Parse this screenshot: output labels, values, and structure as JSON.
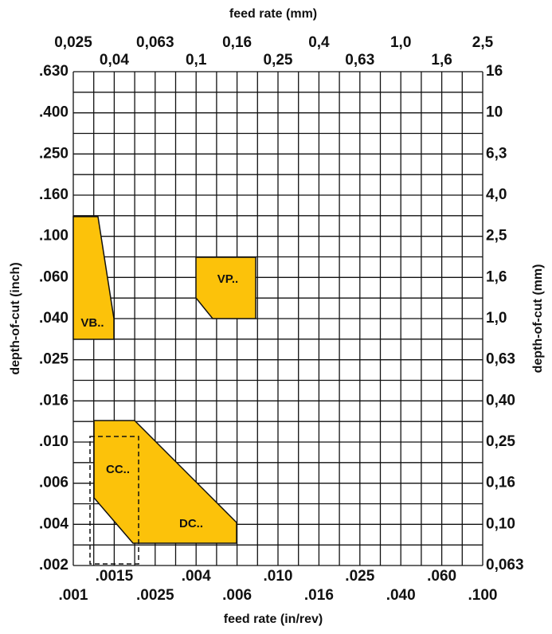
{
  "top_axis": {
    "title": "feed rate (mm)",
    "labels": [
      "0,025",
      "0,04",
      "0,063",
      "0,1",
      "0,16",
      "0,25",
      "0,4",
      "0,63",
      "1,0",
      "1,6",
      "2,5"
    ]
  },
  "bottom_axis": {
    "title": "feed rate (in/rev)",
    "labels": [
      ".001",
      ".0015",
      ".0025",
      ".004",
      ".006",
      ".010",
      ".016",
      ".025",
      ".040",
      ".060",
      ".100"
    ]
  },
  "left_axis": {
    "title": "depth-of-cut (inch)",
    "labels": [
      ".630",
      ".400",
      ".250",
      ".160",
      ".100",
      ".060",
      ".040",
      ".025",
      ".016",
      ".010",
      ".006",
      ".004",
      ".002"
    ]
  },
  "right_axis": {
    "title": "depth-of-cut (mm)",
    "labels": [
      "16",
      "10",
      "6,3",
      "4,0",
      "2,5",
      "1,6",
      "1,0",
      "0,63",
      "0,40",
      "0,25",
      "0,16",
      "0,10",
      "0,063"
    ]
  },
  "regions": [
    {
      "label": "VB.."
    },
    {
      "label": "VP.."
    },
    {
      "label": "DC.."
    },
    {
      "label": "CC.."
    }
  ]
}
